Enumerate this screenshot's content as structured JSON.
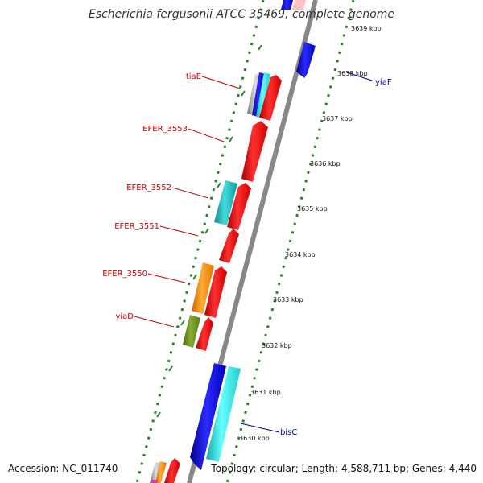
{
  "title": "Escherichia fergusonii ATCC 35469, complete genome",
  "footer": {
    "accession": "Accession: NC_011740",
    "topology": "Topology: circular; Length: 4,588,711 bp; Genes: 4,440"
  },
  "ticks": [
    "3639 kbp",
    "3638 kbp",
    "3637 kbp",
    "3636 kbp",
    "3635 kbp",
    "3634 kbp",
    "3633 kbp",
    "3632 kbp",
    "3631 kbp",
    "3630 kbp"
  ],
  "gene_labels": [
    {
      "text": "tiaE",
      "color": "#cc0000"
    },
    {
      "text": "EFER_3553",
      "color": "#cc0000"
    },
    {
      "text": "EFER_3552",
      "color": "#cc0000"
    },
    {
      "text": "EFER_3551",
      "color": "#cc0000"
    },
    {
      "text": "EFER_3550",
      "color": "#cc0000"
    },
    {
      "text": "yiaD",
      "color": "#cc0000"
    },
    {
      "text": "yiaF",
      "color": "#000099"
    },
    {
      "text": "bisC",
      "color": "#000099"
    }
  ],
  "colors": {
    "forward_cds": "#ee0000",
    "reverse_cds": "#0000dd",
    "backbone": "#888888",
    "dotted_track": "#228822"
  }
}
